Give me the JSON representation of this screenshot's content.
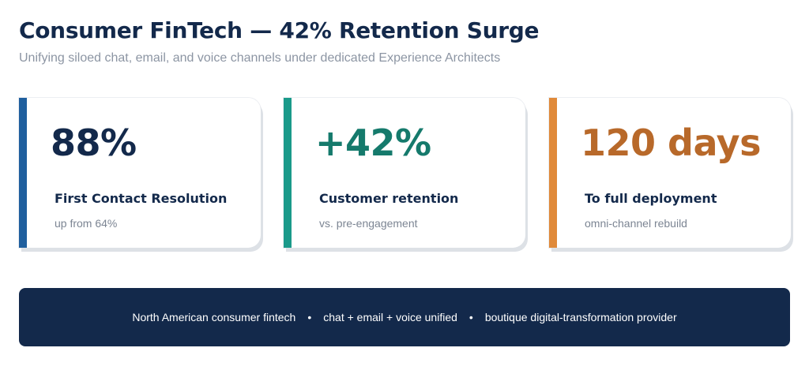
{
  "header": {
    "title": "Consumer FinTech — 42% Retention Surge",
    "subtitle": "Unifying siloed chat, email, and voice channels under dedicated Experience Architects"
  },
  "metrics": [
    {
      "value": "88%",
      "label": "First Contact Resolution",
      "note": "up from 64%",
      "accent": "#1f5f9e"
    },
    {
      "value": "+42%",
      "label": "Customer retention",
      "note": "vs. pre-engagement",
      "accent": "#1a9a8a"
    },
    {
      "value": "120 days",
      "label": "To full deployment",
      "note": "omni-channel rebuild",
      "accent": "#e08a3a"
    }
  ],
  "footer": {
    "items": [
      "North American consumer fintech",
      "chat + email + voice unified",
      "boutique digital-transformation provider"
    ],
    "separator": "•"
  }
}
